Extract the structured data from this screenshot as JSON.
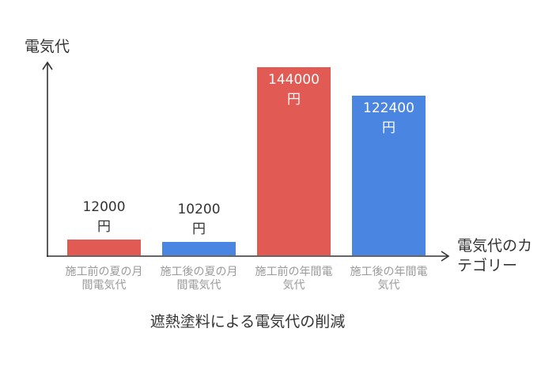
{
  "chart_data": {
    "type": "bar",
    "title": "遮熱塗料による電気代の削減",
    "xlabel": "電気代のカテゴリー",
    "ylabel": "電気代",
    "unit": "円",
    "categories": [
      "施工前の夏の月間電気代",
      "施工後の夏の月間電気代",
      "施工前の年間電気代",
      "施工後の年間電気代"
    ],
    "values": [
      12000,
      10200,
      144000,
      122400
    ],
    "bar_colors": [
      "#E25A54",
      "#4A86E1",
      "#E25A54",
      "#4A86E1"
    ],
    "ylim": [
      0,
      147000
    ],
    "grid": false,
    "show_legend": false
  }
}
